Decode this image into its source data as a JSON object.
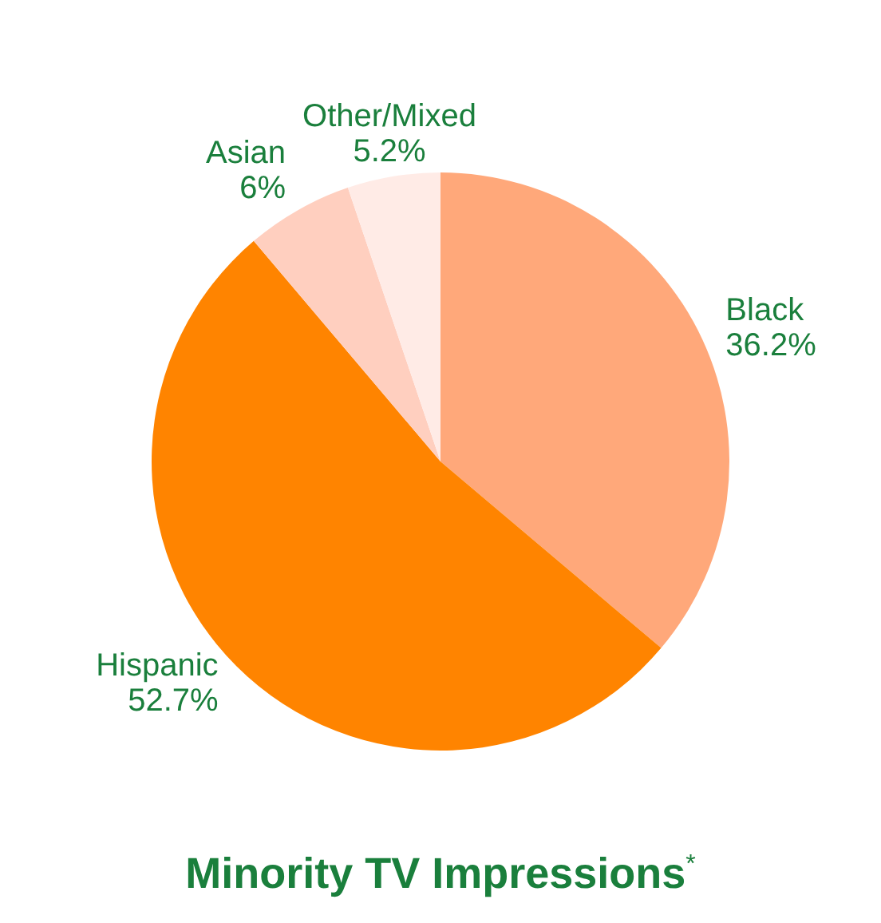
{
  "chart_data": {
    "type": "pie",
    "title": "Minority TV Impressions$^{*}$",
    "categories": [
      "Black",
      "Hispanic",
      "Asian",
      "Other/Mixed"
    ],
    "values": [
      36.2,
      52.7,
      6,
      5.2
    ],
    "value_labels": [
      "36.2%",
      "52.7%",
      "6%",
      "5.2%"
    ],
    "colors": [
      "#ffa87a",
      "#ff8400",
      "#ffcfbf",
      "#ffebe6"
    ],
    "legend": false
  }
}
